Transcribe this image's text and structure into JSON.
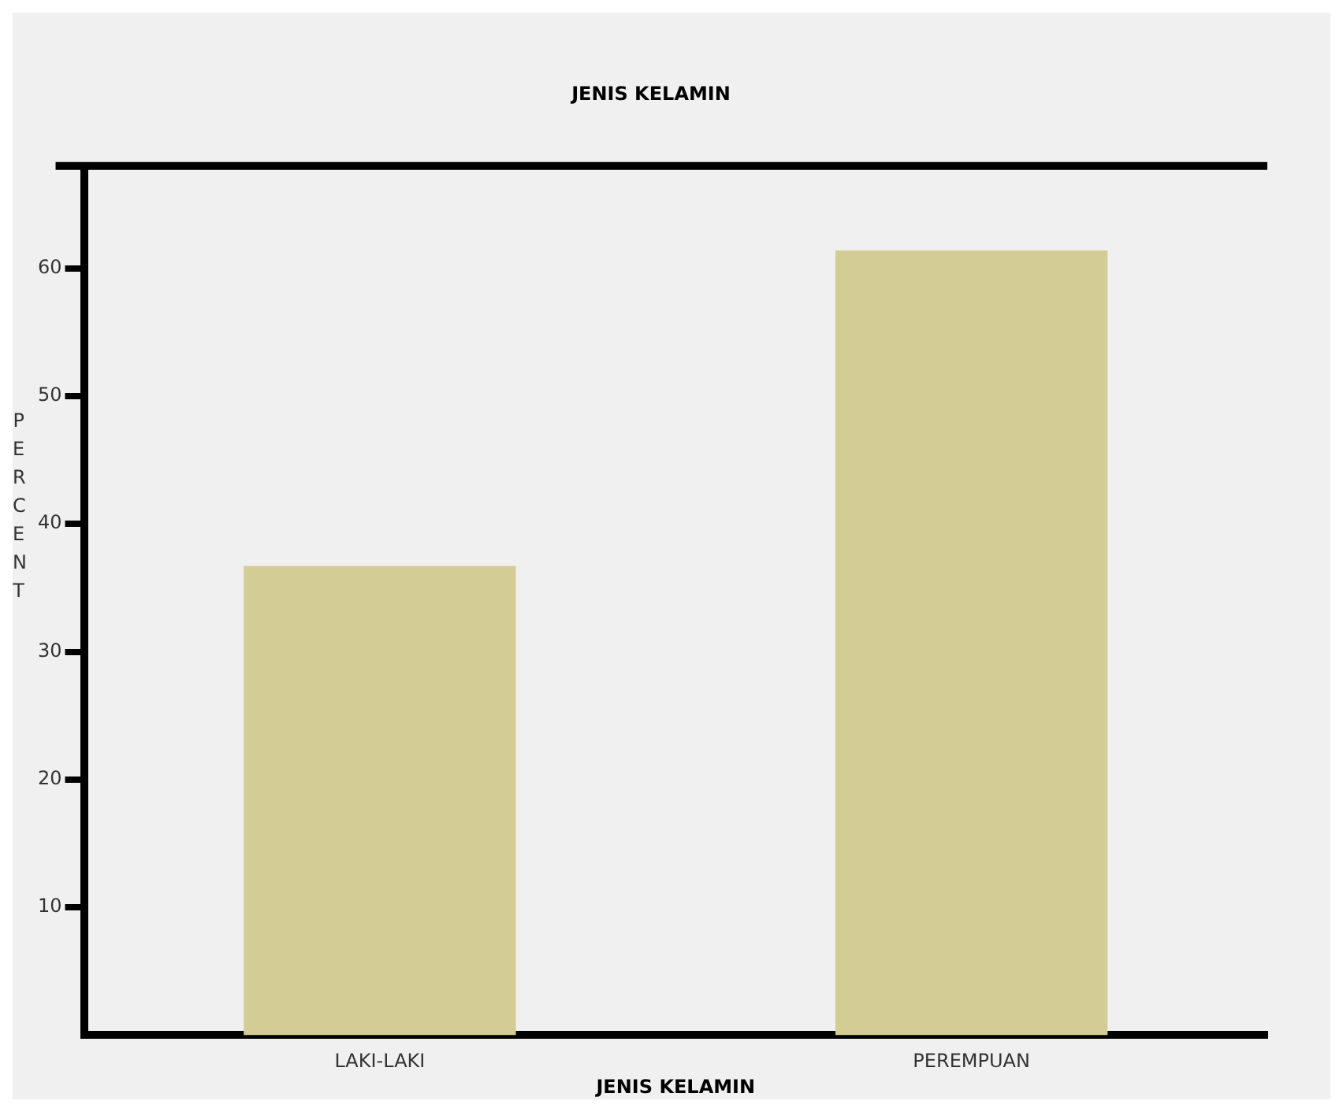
{
  "chart_data": {
    "type": "bar",
    "title": "JENIS KELAMIN",
    "xlabel": "JENIS KELAMIN",
    "ylabel": "PERCENT",
    "categories": [
      "LAKI-LAKI",
      "PEREMPUAN"
    ],
    "values": [
      36.7,
      61.4
    ],
    "color": "#d3cd95",
    "ylim": [
      0,
      68
    ],
    "yticks": [
      10,
      20,
      30,
      40,
      50,
      60
    ],
    "legend": false
  }
}
